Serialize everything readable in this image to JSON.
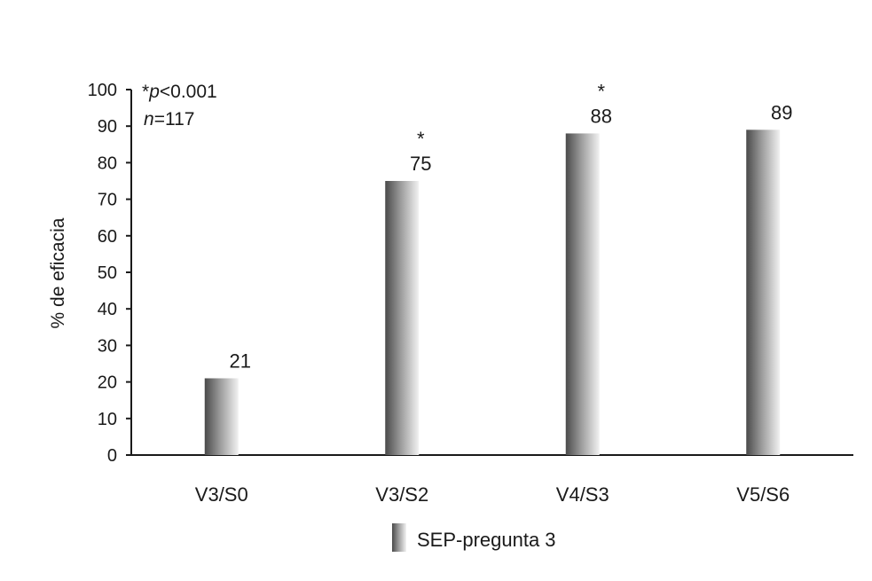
{
  "chart_data": {
    "type": "bar",
    "categories": [
      "V3/S0",
      "V3/S2",
      "V4/S3",
      "V5/S6"
    ],
    "series": [
      {
        "name": "SEP-pregunta 3",
        "values": [
          21,
          75,
          88,
          89
        ]
      }
    ],
    "value_labels": [
      "21",
      "75",
      "88",
      "89"
    ],
    "significance_markers": [
      "",
      "*",
      "*",
      ""
    ],
    "title": "",
    "xlabel": "",
    "ylabel": "% de eficacia",
    "ylim": [
      0,
      100
    ],
    "yticks": [
      0,
      10,
      20,
      30,
      40,
      50,
      60,
      70,
      80,
      90,
      100
    ],
    "grid": false,
    "legend": {
      "placement": "bottom-center"
    },
    "annotation": {
      "star": "*",
      "p_symbol": "p",
      "p_text": "<0.001",
      "n_symbol": "n",
      "n_text": "=117"
    },
    "colors": {
      "bar_dark": "#4a4a4a",
      "bar_light": "#f2f2f2",
      "axis": "#1a1a1a"
    }
  }
}
